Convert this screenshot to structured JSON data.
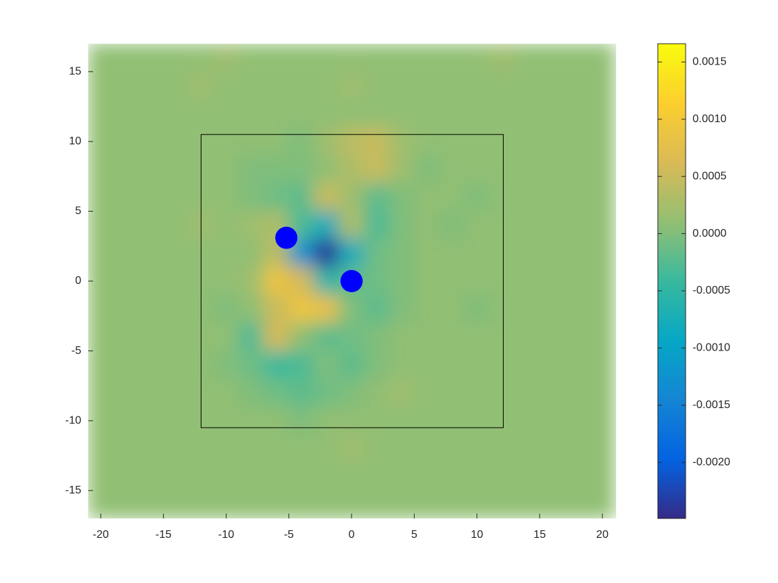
{
  "chart_data": {
    "type": "heatmap",
    "x": [
      -20,
      -18,
      -16,
      -14,
      -12,
      -10,
      -8,
      -6,
      -4,
      -2,
      0,
      2,
      4,
      6,
      8,
      10,
      12,
      14,
      16,
      18,
      20
    ],
    "y": [
      16,
      14,
      12,
      10,
      8,
      6,
      4,
      2,
      0,
      -2,
      -4,
      -6,
      -8,
      -10,
      -12,
      -14,
      -16
    ],
    "z": [
      [
        0.0001,
        0.0001,
        0.0001,
        0.0001,
        0.0001,
        0.0002,
        0.0001,
        0.0001,
        0.0001,
        0.0001,
        0.0001,
        0.0001,
        0.0001,
        0.0001,
        0.0001,
        0.0001,
        0.0002,
        0.0001,
        0.0001,
        0.0001,
        0.0001
      ],
      [
        0.0001,
        0.0001,
        0.0001,
        0.0001,
        0.0002,
        0.0001,
        0.0001,
        0.0001,
        0.0001,
        0.0001,
        0.0002,
        0.0001,
        0.0001,
        0.0001,
        0.0001,
        0.0001,
        0.0001,
        0.0001,
        0.0001,
        0.0001,
        0.0001
      ],
      [
        0.0001,
        0.0001,
        0.0001,
        0.0001,
        0.0001,
        0.0001,
        0.0001,
        0.0001,
        0.0001,
        0.0001,
        0.0001,
        0.0001,
        0.0001,
        0.0001,
        0.0001,
        0.0001,
        0.0001,
        0.0001,
        0.0001,
        0.0001,
        0.0001
      ],
      [
        0.0001,
        0.0001,
        0.0001,
        0.0001,
        0.0001,
        0.0001,
        0.0001,
        0.0001,
        0,
        0.0002,
        0.0004,
        0.0005,
        0.0002,
        0.0001,
        0.0001,
        0.0001,
        0.0001,
        0.0001,
        0.0001,
        0.0001,
        0.0001
      ],
      [
        0.0001,
        0.0001,
        0.0001,
        0.0001,
        0.0001,
        0.0001,
        0,
        0,
        0,
        0.0001,
        0.0003,
        0.0005,
        0.0002,
        0,
        0.0001,
        0.0001,
        0.0001,
        0.0001,
        0.0001,
        0.0001,
        0.0001
      ],
      [
        0.0001,
        0.0001,
        0.0001,
        0.0001,
        0.0001,
        0.0001,
        0,
        -0.0001,
        -0.0002,
        0.0005,
        0.0002,
        -0.0002,
        0,
        0.0001,
        0.0001,
        0,
        0.0001,
        0.0001,
        0.0001,
        0.0001,
        0.0001
      ],
      [
        0.0001,
        0.0001,
        0.0001,
        0.0001,
        0.0002,
        0.0001,
        0.0002,
        0.0003,
        -0.0003,
        -0.0008,
        0.0003,
        -0.0003,
        0,
        0.0001,
        0,
        0.0001,
        0.0001,
        0.0001,
        0.0001,
        0.0001,
        0.0001
      ],
      [
        0.0001,
        0.0001,
        0.0001,
        0.0001,
        0.0001,
        0.0001,
        0.0001,
        0.0004,
        -0.0012,
        -0.0024,
        -0.0008,
        -0.0001,
        0,
        0.0001,
        0.0001,
        0.0001,
        0.0001,
        0.0001,
        0.0001,
        0.0001,
        0.0001
      ],
      [
        0.0001,
        0.0001,
        0.0001,
        0.0001,
        0.0001,
        0.0001,
        0.0002,
        0.0009,
        0.0006,
        -0.0006,
        -0.0002,
        -0.0001,
        0,
        0.0001,
        0.0001,
        0.0001,
        0.0001,
        0.0001,
        0.0001,
        0.0001,
        0.0001
      ],
      [
        0.0001,
        0.0001,
        0.0001,
        0.0001,
        0.0001,
        0,
        0.0001,
        0.0005,
        0.0009,
        0.0008,
        0,
        -0.0002,
        0,
        0.0001,
        0.0001,
        0,
        0.0001,
        0.0001,
        0.0001,
        0.0001,
        0.0001
      ],
      [
        0.0001,
        0.0001,
        0.0001,
        0.0001,
        0.0001,
        0.0001,
        -0.0003,
        0.0006,
        0.0001,
        -0.0002,
        -0.0001,
        0,
        0.0001,
        0.0001,
        0.0001,
        0.0001,
        0.0001,
        0.0001,
        0.0001,
        0.0001,
        0.0001
      ],
      [
        0.0001,
        0.0001,
        0.0001,
        0.0001,
        0.0001,
        0,
        -0.0001,
        -0.0004,
        -0.0003,
        0,
        -0.0002,
        0,
        0.0001,
        0.0001,
        0.0001,
        0.0001,
        0.0001,
        0.0001,
        0.0001,
        0.0001,
        0.0001
      ],
      [
        0.0001,
        0.0001,
        0.0001,
        0.0001,
        0.0001,
        0.0001,
        0,
        -0.0001,
        -0.0002,
        -0.0001,
        0,
        0.0001,
        0.0002,
        0.0001,
        0.0001,
        0.0001,
        0.0001,
        0.0001,
        0.0001,
        0.0001,
        0.0001
      ],
      [
        0.0001,
        0.0001,
        0.0001,
        0.0001,
        0.0001,
        0.0001,
        0.0001,
        0.0001,
        0,
        0.0001,
        0.0001,
        0.0001,
        0.0001,
        0.0001,
        0.0001,
        0.0001,
        0.0001,
        0.0001,
        0.0001,
        0.0001,
        0.0001
      ],
      [
        0.0001,
        0.0001,
        0.0001,
        0.0001,
        0.0001,
        0.0001,
        0.0001,
        0.0001,
        0.0001,
        0.0001,
        0.0002,
        0.0001,
        0.0001,
        0.0001,
        0.0001,
        0.0001,
        0.0001,
        0.0001,
        0.0001,
        0.0001,
        0.0001
      ],
      [
        0.0001,
        0.0001,
        0.0001,
        0.0001,
        0.0001,
        0.0001,
        0.0001,
        0.0001,
        0.0001,
        0.0001,
        0.0001,
        0.0001,
        0.0001,
        0.0001,
        0.0001,
        0.0001,
        0.0001,
        0.0001,
        0.0001,
        0.0001,
        0.0001
      ],
      [
        0.0001,
        0.0001,
        0.0001,
        0.0001,
        0.0001,
        0.0001,
        0.0001,
        0.0001,
        0.0001,
        0.0001,
        0.0001,
        0.0001,
        0.0001,
        0.0001,
        0.0001,
        0.0001,
        0.0001,
        0.0001,
        0.0001,
        0.0001,
        0.0001
      ]
    ],
    "xlim": [
      -21,
      21.1
    ],
    "ylim": [
      -17,
      17
    ],
    "xticks": [
      -20,
      -15,
      -10,
      -5,
      0,
      5,
      10,
      15,
      20
    ],
    "yticks": [
      -15,
      -10,
      -5,
      0,
      5,
      10,
      15
    ],
    "clim": [
      -0.00249,
      0.00166
    ],
    "cticks": [
      {
        "value": -0.002,
        "label": "-0.0020"
      },
      -0.0015,
      {
        "value": -0.001,
        "label": "-0.0010"
      },
      -0.0005,
      {
        "value": 0,
        "label": "0.0000"
      },
      0.0005,
      {
        "value": 0.001,
        "label": "0.0010"
      },
      0.0015
    ],
    "points": {
      "x": [
        -5.2,
        0
      ],
      "y": [
        3.1,
        0
      ],
      "color": "#0000ff"
    },
    "rectangle": {
      "x": [
        -12,
        12.1
      ],
      "y": [
        -10.5,
        10.5
      ],
      "color": "#000000"
    }
  }
}
